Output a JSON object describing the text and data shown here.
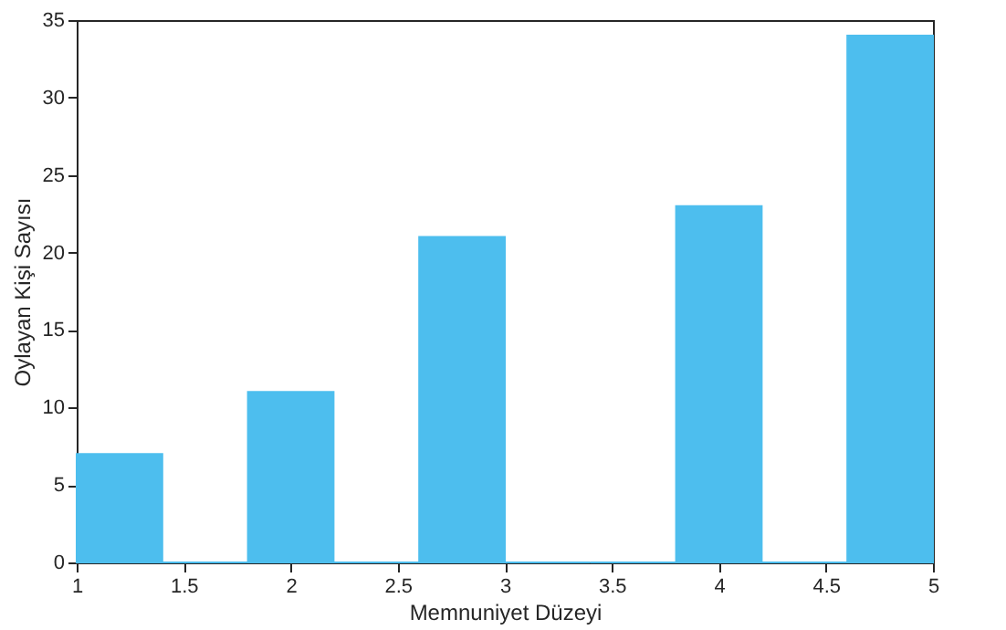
{
  "chart_data": {
    "type": "histogram",
    "xlabel": "Memnuniyet Düzeyi",
    "ylabel": "Oylayan Kişi Sayısı",
    "bins": [
      1,
      1.4,
      1.8,
      2.2,
      2.6,
      3,
      3.4,
      3.8,
      4.2,
      4.6,
      5
    ],
    "values": [
      7,
      0,
      11,
      0,
      21,
      0,
      0,
      23,
      0,
      34
    ],
    "color": "#4dbeee",
    "xlim": [
      1,
      5
    ],
    "xticks": [
      1,
      1.5,
      2,
      2.5,
      3,
      3.5,
      4,
      4.5,
      5
    ],
    "ylim": [
      0,
      35
    ],
    "yticks": [
      0,
      5,
      10,
      15,
      20,
      25,
      30,
      35
    ],
    "grid": false
  }
}
